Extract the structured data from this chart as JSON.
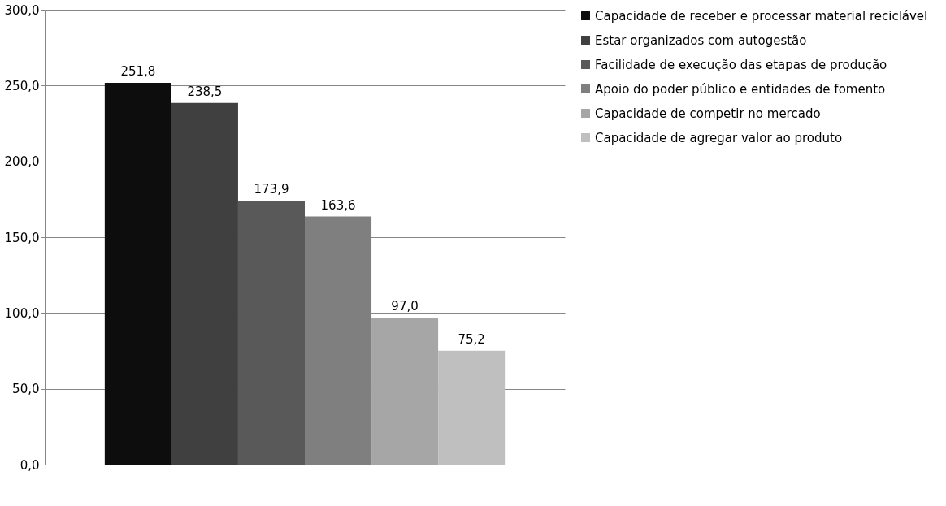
{
  "chart_data": {
    "type": "bar",
    "categories": [
      null
    ],
    "series": [
      {
        "name": "Capacidade de receber e processar material reciclável",
        "color": "#0d0d0d",
        "values": [
          251.8
        ],
        "value_labels": [
          "251,8"
        ]
      },
      {
        "name": "Estar organizados com autogestão",
        "color": "#404040",
        "values": [
          238.5
        ],
        "value_labels": [
          "238,5"
        ]
      },
      {
        "name": "Facilidade de execução das etapas de produção",
        "color": "#595959",
        "values": [
          173.9
        ],
        "value_labels": [
          "173,9"
        ]
      },
      {
        "name": "Apoio do poder público e entidades de fomento",
        "color": "#7f7f7f",
        "values": [
          163.6
        ],
        "value_labels": [
          "163,6"
        ]
      },
      {
        "name": "Capacidade de competir no mercado",
        "color": "#a6a6a6",
        "values": [
          97.0
        ],
        "value_labels": [
          "97,0"
        ]
      },
      {
        "name": "Capacidade de agregar valor ao produto",
        "color": "#bfbfbf",
        "values": [
          75.2
        ],
        "value_labels": [
          "75,2"
        ]
      }
    ],
    "ylim": [
      0,
      300
    ],
    "yticks": [
      {
        "value": 0,
        "label": "0,0"
      },
      {
        "value": 50,
        "label": "50,0"
      },
      {
        "value": 100,
        "label": "100,0"
      },
      {
        "value": 150,
        "label": "150,0"
      },
      {
        "value": 200,
        "label": "200,0"
      },
      {
        "value": 250,
        "label": "250,0"
      },
      {
        "value": 300,
        "label": "300,0"
      }
    ],
    "grid": "y",
    "legend": "right"
  }
}
